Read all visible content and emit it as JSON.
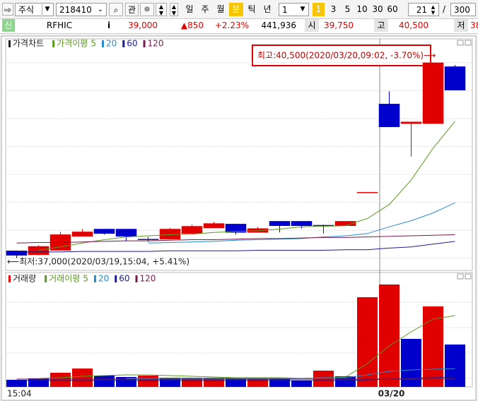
{
  "toolbar": {
    "market": "주식",
    "code": "218410",
    "watch": "관",
    "periods": [
      "일",
      "주",
      "월",
      "분",
      "틱",
      "년"
    ],
    "active_period": "분",
    "interval": "1",
    "intervals": [
      "1",
      "3",
      "5",
      "10",
      "30",
      "60"
    ],
    "active_interval": "1",
    "count": "21",
    "separator": "/",
    "total": "300"
  },
  "quote": {
    "badge": "신",
    "name": "RFHIC",
    "info": "i",
    "price": "39,000",
    "change": "▲850",
    "rate": "+2.23%",
    "volume": "441,936",
    "open_label": "시",
    "open": "39,750",
    "high_label": "고",
    "high": "40,500",
    "low_label": "저",
    "low": "38,"
  },
  "chart_data": [
    {
      "type": "candlestick",
      "title": "가격차트",
      "ma_label": "가격이평",
      "open": [
        37130,
        37060,
        37140,
        37390,
        37520,
        37520,
        37340,
        37340,
        37440,
        37540,
        37610,
        37460,
        37660,
        37660,
        37590,
        37580,
        38180,
        39760,
        39410,
        39410,
        40430
      ],
      "high": [
        37130,
        37230,
        37470,
        37520,
        37520,
        37520,
        37380,
        37540,
        37600,
        37650,
        37610,
        37560,
        37660,
        37660,
        37600,
        37660,
        38180,
        39990,
        39440,
        40500,
        40460
      ],
      "low": [
        37000,
        37050,
        37140,
        37390,
        37420,
        37300,
        37290,
        37340,
        37440,
        37540,
        37420,
        37460,
        37460,
        37530,
        37440,
        37580,
        38180,
        39350,
        38820,
        39410,
        40010
      ],
      "close": [
        37050,
        37210,
        37420,
        37470,
        37440,
        37390,
        37340,
        37520,
        37570,
        37620,
        37460,
        37530,
        37580,
        37580,
        37590,
        37660,
        38180,
        39350,
        39440,
        40500,
        40010
      ],
      "colors": [
        "#0000cc",
        "#e00000",
        "#e00000",
        "#e00000",
        "#0000cc",
        "#0000cc",
        "#1a1a80",
        "#e00000",
        "#e00000",
        "#e00000",
        "#0000cc",
        "#e00000",
        "#0000cc",
        "#0000cc",
        "#1a1a80",
        "#e00000",
        "#e00000",
        "#0000cc",
        "#e00000",
        "#e00000",
        "#0000cc"
      ],
      "series": [
        {
          "name": "5",
          "color": "#5a9a20",
          "values": [
            null,
            37140,
            37200,
            37270,
            37330,
            37380,
            37400,
            37420,
            37430,
            37460,
            37480,
            37490,
            37520,
            37560,
            37570,
            37580,
            37710,
            37960,
            38400,
            38970,
            39450
          ]
        },
        {
          "name": "20",
          "color": "#2a8ad0",
          "values": [
            null,
            null,
            null,
            null,
            null,
            null,
            37270,
            37280,
            37290,
            37300,
            37320,
            37330,
            37340,
            37350,
            37380,
            37400,
            37440,
            37560,
            37670,
            37810,
            37990
          ]
        },
        {
          "name": "60",
          "color": "#1c1c8c",
          "values": [
            37110,
            37110,
            37110,
            37120,
            37120,
            37120,
            37120,
            37130,
            37130,
            37130,
            37130,
            37140,
            37140,
            37140,
            37140,
            37150,
            37150,
            37180,
            37200,
            37250,
            37300
          ]
        },
        {
          "name": "120",
          "color": "#7a1a4a",
          "values": [
            37270,
            37280,
            37280,
            37290,
            37300,
            37310,
            37310,
            37320,
            37330,
            37330,
            37340,
            37350,
            37350,
            37360,
            37370,
            37370,
            37380,
            37390,
            37400,
            37410,
            37420
          ]
        }
      ],
      "ylim": [
        36780,
        40840
      ],
      "yticks": [
        37000,
        37500,
        38000,
        38500,
        39000,
        39500,
        40000,
        40500
      ],
      "grid": true,
      "annotations": [
        "최고:40,500(2020/03/20,09:02, -3.70%)⟶",
        "⟵최저:37,000(2020/03/19,15:04, +5.41%)"
      ]
    },
    {
      "type": "bar",
      "title": "거래량",
      "ma_label": "거래이평",
      "color": "#e00000",
      "categories": [
        "15:04",
        null,
        null,
        null,
        null,
        null,
        null,
        null,
        null,
        null,
        null,
        null,
        null,
        null,
        null,
        null,
        null,
        "03/20",
        null,
        null,
        null
      ],
      "values": [
        10000,
        12000,
        20000,
        26000,
        16000,
        14000,
        16000,
        13000,
        13000,
        13000,
        13000,
        13000,
        12000,
        9000,
        23000,
        15000,
        127000,
        145000,
        68000,
        114000,
        60000
      ],
      "colors": [
        "#0000cc",
        "#0000cc",
        "#e00000",
        "#e00000",
        "#0000cc",
        "#0000cc",
        "#e00000",
        "#0000cc",
        "#e00000",
        "#e00000",
        "#0000cc",
        "#e00000",
        "#0000cc",
        "#0000cc",
        "#e00000",
        "#0000cc",
        "#e00000",
        "#e00000",
        "#0000cc",
        "#e00000",
        "#0000cc"
      ],
      "series": [
        {
          "name": "5",
          "color": "#5a9a20",
          "values": [
            null,
            12000,
            13000,
            15000,
            16000,
            17000,
            17000,
            16000,
            15000,
            14000,
            13000,
            13000,
            13000,
            12000,
            13000,
            14000,
            33000,
            58000,
            78000,
            96000,
            101000
          ]
        },
        {
          "name": "20",
          "color": "#2a8ad0",
          "values": [
            null,
            null,
            null,
            null,
            null,
            12000,
            12000,
            12000,
            12000,
            12000,
            12000,
            12000,
            12000,
            12000,
            13000,
            13000,
            17000,
            22000,
            24000,
            25000,
            26000
          ]
        },
        {
          "name": "60",
          "color": "#1c1c8c",
          "values": [
            9000,
            9000,
            9000,
            9000,
            9000,
            9000,
            9000,
            9000,
            9000,
            9000,
            9000,
            9000,
            9000,
            9000,
            9000,
            9000,
            10000,
            11000,
            12000,
            13000,
            14000
          ]
        },
        {
          "name": "120",
          "color": "#7a1a4a",
          "values": [
            11000,
            11000,
            11000,
            11000,
            11000,
            11000,
            11000,
            11000,
            11000,
            11000,
            11000,
            11000,
            11000,
            11000,
            11000,
            11000,
            11000,
            11000,
            11000,
            11000,
            11000
          ]
        }
      ],
      "ylim": [
        0,
        150000
      ],
      "yticks": [
        12000,
        48000,
        84000,
        120000
      ],
      "grid": true
    }
  ]
}
